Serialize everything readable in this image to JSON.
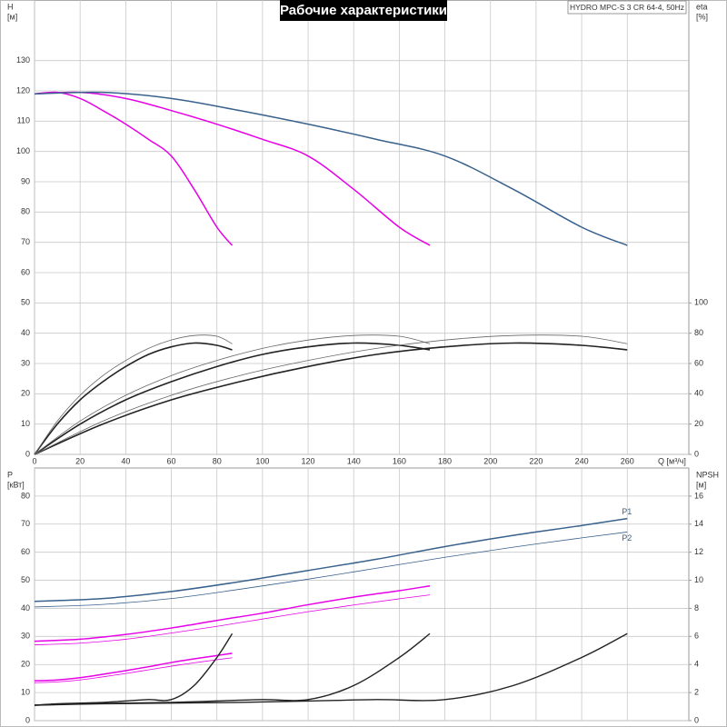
{
  "chart_data": [
    {
      "type": "line",
      "title": "Рабочие характеристики",
      "subtitle": "HYDRO MPC-S 3 CR 64-4, 50Hz",
      "xlabel": "Q [м³/ч]",
      "ylabel": [
        "H",
        "[м]"
      ],
      "y2label": [
        "eta",
        "[%]"
      ],
      "xlim": [
        0,
        287
      ],
      "xticks": [
        0,
        20,
        40,
        60,
        80,
        100,
        120,
        140,
        160,
        180,
        200,
        220,
        240,
        260
      ],
      "ylim": [
        0,
        150
      ],
      "yticks": [
        0,
        10,
        20,
        30,
        40,
        50,
        60,
        70,
        80,
        90,
        100,
        110,
        120,
        130
      ],
      "y2lim": [
        0,
        300
      ],
      "y2ticks": [
        0,
        20,
        40,
        60,
        80,
        100
      ],
      "grid": true,
      "series": [
        {
          "color": "#e600e6",
          "line_width": 1.5,
          "x": [
            0,
            10,
            20,
            30,
            40,
            50,
            60,
            70,
            80,
            86.7
          ],
          "values": [
            119,
            119.5,
            117.5,
            113.5,
            109,
            104,
            98.5,
            87.5,
            75,
            69
          ]
        },
        {
          "color": "#e600e6",
          "line_width": 1.5,
          "x": [
            0,
            20,
            40,
            60,
            80,
            100,
            120,
            140,
            160,
            173.4
          ],
          "values": [
            119,
            119.5,
            117.5,
            113.5,
            109,
            104,
            98.5,
            87.5,
            75,
            69
          ]
        },
        {
          "color": "#38618c",
          "line_width": 1.5,
          "x": [
            0,
            30,
            60,
            90,
            120,
            150,
            180,
            210,
            240,
            260
          ],
          "values": [
            119,
            119.5,
            117.5,
            113.5,
            109,
            104,
            98.5,
            87.5,
            75,
            69
          ]
        },
        {
          "color": "#222222",
          "line_width": 1.6,
          "axis": "y2",
          "x": [
            0,
            10,
            20,
            30,
            40,
            50,
            60,
            70,
            80,
            86.7
          ],
          "values": [
            0,
            20,
            36,
            48,
            58,
            66,
            71,
            73.5,
            72,
            69
          ]
        },
        {
          "color": "#222222",
          "line_width": 1.6,
          "axis": "y2",
          "x": [
            0,
            20,
            40,
            60,
            80,
            100,
            120,
            140,
            160,
            173.4
          ],
          "values": [
            0,
            20,
            36,
            48,
            58,
            66,
            71,
            73.5,
            72,
            69
          ]
        },
        {
          "color": "#222222",
          "line_width": 1.6,
          "axis": "y2",
          "x": [
            0,
            30,
            60,
            90,
            120,
            150,
            180,
            210,
            240,
            260
          ],
          "values": [
            0,
            20,
            36,
            48,
            58,
            66,
            71,
            73.5,
            72,
            69
          ]
        },
        {
          "color": "#666666",
          "line_width": 0.8,
          "axis": "y2",
          "x": [
            0,
            10,
            20,
            30,
            40,
            50,
            60,
            70,
            80,
            86.7
          ],
          "values": [
            0,
            22,
            39,
            52,
            62,
            70,
            75.5,
            78.5,
            78,
            73
          ]
        },
        {
          "color": "#666666",
          "line_width": 0.8,
          "axis": "y2",
          "x": [
            0,
            20,
            40,
            60,
            80,
            100,
            120,
            140,
            160,
            173.4
          ],
          "values": [
            0,
            22,
            39,
            52,
            62,
            70,
            75.5,
            78.5,
            78,
            73
          ]
        },
        {
          "color": "#666666",
          "line_width": 0.8,
          "axis": "y2",
          "x": [
            0,
            30,
            60,
            90,
            120,
            150,
            180,
            210,
            240,
            260
          ],
          "values": [
            0,
            22,
            39,
            52,
            62,
            70,
            75.5,
            78.5,
            78,
            73
          ]
        }
      ]
    },
    {
      "type": "line",
      "ylabel": [
        "P",
        "[кВт]"
      ],
      "y2label": [
        "NPSH",
        "[м]"
      ],
      "xlim": [
        0,
        287
      ],
      "xticks": [
        0,
        20,
        40,
        60,
        80,
        100,
        120,
        140,
        160,
        180,
        200,
        220,
        240,
        260
      ],
      "ylim": [
        0,
        90
      ],
      "yticks": [
        0,
        10,
        20,
        30,
        40,
        50,
        60,
        70,
        80
      ],
      "y2lim": [
        0,
        18
      ],
      "y2ticks": [
        0,
        2,
        4,
        6,
        8,
        10,
        12,
        14,
        16
      ],
      "grid": true,
      "series": [
        {
          "color": "#e600e6",
          "line_width": 1.5,
          "x": [
            0,
            10,
            20,
            30,
            40,
            50,
            60,
            70,
            80,
            86.7
          ],
          "values": [
            14.2,
            14.5,
            15.3,
            16.5,
            17.8,
            19.2,
            20.7,
            22,
            23.2,
            24
          ]
        },
        {
          "color": "#e600e6",
          "line_width": 0.8,
          "x": [
            0,
            10,
            20,
            30,
            40,
            50,
            60,
            70,
            80,
            86.7
          ],
          "values": [
            13.5,
            13.8,
            14.5,
            15.6,
            16.8,
            18.1,
            19.4,
            20.6,
            21.7,
            22.4
          ]
        },
        {
          "color": "#e600e6",
          "line_width": 1.5,
          "x": [
            0,
            20,
            40,
            60,
            80,
            100,
            120,
            140,
            160,
            173.4
          ],
          "values": [
            28.3,
            29,
            30.7,
            33,
            35.7,
            38.3,
            41.3,
            44,
            46.3,
            48
          ]
        },
        {
          "color": "#e600e6",
          "line_width": 0.8,
          "x": [
            0,
            20,
            40,
            60,
            80,
            100,
            120,
            140,
            160,
            173.4
          ],
          "values": [
            27,
            27.6,
            29,
            31.2,
            33.6,
            36.2,
            38.8,
            41.2,
            43.4,
            44.8
          ]
        },
        {
          "name": "P1",
          "color": "#38618c",
          "line_width": 1.5,
          "x": [
            0,
            30,
            60,
            90,
            120,
            150,
            180,
            210,
            240,
            260
          ],
          "values": [
            42.5,
            43.5,
            46,
            49.5,
            53.5,
            57.5,
            62,
            66,
            69.5,
            72
          ]
        },
        {
          "name": "P2",
          "color": "#38618c",
          "line_width": 0.8,
          "x": [
            0,
            30,
            60,
            90,
            120,
            150,
            180,
            210,
            240,
            260
          ],
          "values": [
            40.5,
            41.4,
            43.5,
            46.8,
            50.4,
            54.3,
            58.2,
            61.8,
            65.1,
            67.2
          ]
        },
        {
          "color": "#222222",
          "line_width": 1.4,
          "axis": "y2",
          "x": [
            0,
            10,
            20,
            30,
            40,
            50,
            60,
            70,
            80,
            86.7
          ],
          "values": [
            1.1,
            1.2,
            1.25,
            1.3,
            1.4,
            1.5,
            1.5,
            2.5,
            4.5,
            6.2
          ]
        },
        {
          "color": "#222222",
          "line_width": 1.4,
          "axis": "y2",
          "x": [
            0,
            20,
            40,
            60,
            80,
            100,
            120,
            140,
            160,
            173.4
          ],
          "values": [
            1.1,
            1.2,
            1.25,
            1.3,
            1.4,
            1.5,
            1.5,
            2.5,
            4.5,
            6.2
          ]
        },
        {
          "color": "#222222",
          "line_width": 1.4,
          "axis": "y2",
          "x": [
            0,
            30,
            60,
            90,
            120,
            150,
            180,
            210,
            240,
            260
          ],
          "values": [
            1.1,
            1.2,
            1.25,
            1.3,
            1.4,
            1.5,
            1.5,
            2.5,
            4.5,
            6.2
          ]
        }
      ]
    }
  ]
}
